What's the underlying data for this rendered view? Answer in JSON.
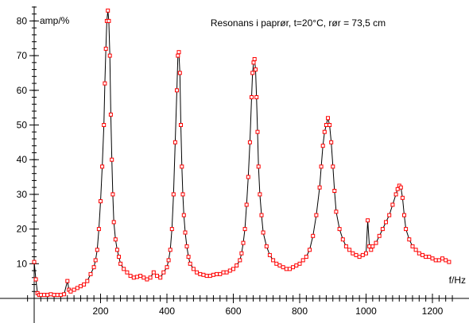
{
  "chart_data": {
    "type": "line",
    "title": "Resonans i paprør, t=20°C, rør = 73,5 cm",
    "xlabel": "f/Hz",
    "ylabel": "amp/%",
    "xlim": [
      -20,
      1260
    ],
    "ylim": [
      0,
      85
    ],
    "xticks": [
      200,
      400,
      600,
      800,
      1000,
      1200
    ],
    "yticks": [
      10,
      20,
      30,
      40,
      50,
      60,
      70,
      80
    ],
    "grid": false,
    "legend": "none",
    "colors": {
      "line": "#000000",
      "marker": "#ff0000"
    },
    "series": [
      {
        "values_x": [
          0,
          5,
          10,
          15,
          20,
          30,
          40,
          50,
          60,
          70,
          80,
          90,
          100,
          105,
          110,
          120,
          130,
          140,
          150,
          160,
          170,
          180,
          185,
          190,
          195,
          200,
          205,
          210,
          213,
          216,
          219,
          222,
          225,
          228,
          231,
          234,
          237,
          240,
          245,
          250,
          255,
          260,
          270,
          280,
          290,
          300,
          310,
          320,
          330,
          340,
          350,
          360,
          370,
          380,
          390,
          400,
          405,
          410,
          415,
          420,
          425,
          430,
          433,
          436,
          439,
          442,
          445,
          448,
          451,
          455,
          460,
          465,
          470,
          480,
          490,
          500,
          510,
          520,
          530,
          540,
          550,
          560,
          570,
          580,
          590,
          600,
          610,
          620,
          625,
          630,
          635,
          640,
          645,
          650,
          655,
          658,
          661,
          664,
          667,
          670,
          673,
          676,
          680,
          685,
          690,
          700,
          710,
          720,
          730,
          740,
          750,
          760,
          770,
          780,
          790,
          800,
          810,
          820,
          830,
          840,
          850,
          860,
          865,
          870,
          875,
          880,
          885,
          890,
          895,
          900,
          905,
          910,
          920,
          930,
          940,
          950,
          960,
          970,
          980,
          990,
          1000,
          1005,
          1010,
          1015,
          1020,
          1030,
          1040,
          1050,
          1060,
          1070,
          1080,
          1090,
          1095,
          1100,
          1105,
          1110,
          1115,
          1120,
          1130,
          1140,
          1150,
          1160,
          1170,
          1180,
          1190,
          1200,
          1210,
          1220,
          1230,
          1240,
          1250
        ],
        "values": [
          10.5,
          5.5,
          1.5,
          1.0,
          1.0,
          1.0,
          1.0,
          1.2,
          1.0,
          1.0,
          1.0,
          1.2,
          5.0,
          2.5,
          2.0,
          2.5,
          3.0,
          3.5,
          4.0,
          5.0,
          7.0,
          9.0,
          11.0,
          14.0,
          20.0,
          28.0,
          38.0,
          50.0,
          62.0,
          72.0,
          80.0,
          83.0,
          80.0,
          70.0,
          53.0,
          40.0,
          30.0,
          22.0,
          17.0,
          14.0,
          12.0,
          10.0,
          8.5,
          7.5,
          6.5,
          6.0,
          6.2,
          6.5,
          6.0,
          5.5,
          6.0,
          7.5,
          6.5,
          6.0,
          7.5,
          9.0,
          11.0,
          14.0,
          20.0,
          30.0,
          45.0,
          60.0,
          70.0,
          71.0,
          65.0,
          50.0,
          38.0,
          30.0,
          24.0,
          19.0,
          15.0,
          12.0,
          10.0,
          8.5,
          7.5,
          7.0,
          6.8,
          6.5,
          6.5,
          6.8,
          7.0,
          7.0,
          7.5,
          7.5,
          8.0,
          8.5,
          9.5,
          11.0,
          13.0,
          16.0,
          20.0,
          27.0,
          35.0,
          45.0,
          58.0,
          65.0,
          68.0,
          69.0,
          66.0,
          58.0,
          48.0,
          38.0,
          30.0,
          24.0,
          19.0,
          15.0,
          12.5,
          11.0,
          10.0,
          9.5,
          9.0,
          8.5,
          8.5,
          9.0,
          9.5,
          10.0,
          11.0,
          12.0,
          14.0,
          18.0,
          24.0,
          32.0,
          38.0,
          44.0,
          48.0,
          50.0,
          52.0,
          50.0,
          45.0,
          38.0,
          31.0,
          25.0,
          20.0,
          17.0,
          15.0,
          14.0,
          13.0,
          12.5,
          12.0,
          12.5,
          13.0,
          22.5,
          15.0,
          14.0,
          15.0,
          16.0,
          18.0,
          20.0,
          22.0,
          24.0,
          27.0,
          30.0,
          31.5,
          32.5,
          32.0,
          29.0,
          24.0,
          20.0,
          17.0,
          15.0,
          14.0,
          13.0,
          12.5,
          12.0,
          12.0,
          11.5,
          11.0,
          11.0,
          11.5,
          11.0,
          10.5
        ]
      }
    ]
  }
}
